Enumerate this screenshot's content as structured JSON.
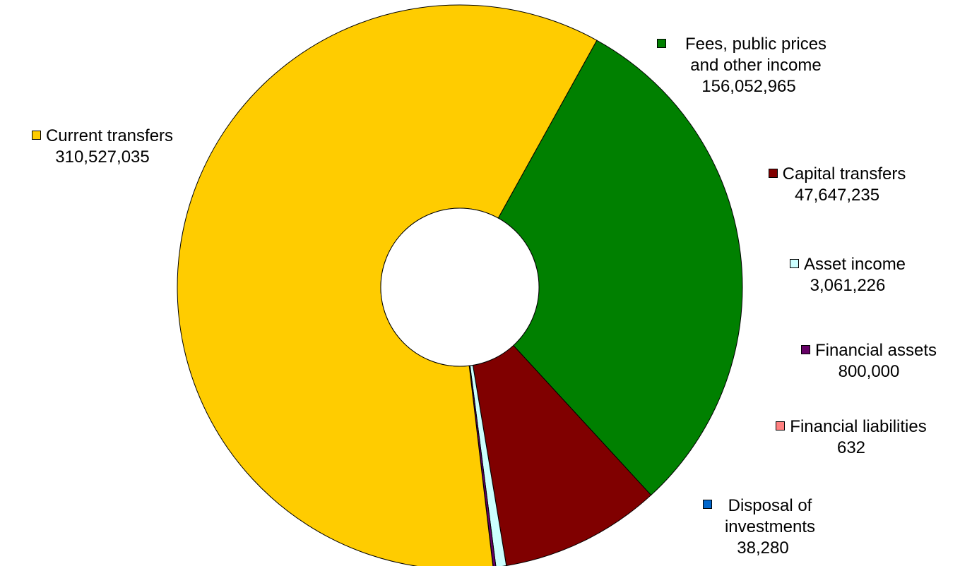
{
  "chart_data": {
    "type": "pie",
    "donut": true,
    "title": "",
    "slices": [
      {
        "label": "Fees, public prices and other income",
        "value": 156052965,
        "value_text": "156,052,965",
        "color": "#008000"
      },
      {
        "label": "Capital transfers",
        "value": 47647235,
        "value_text": "47,647,235",
        "color": "#800000"
      },
      {
        "label": "Asset income",
        "value": 3061226,
        "value_text": "3,061,226",
        "color": "#ccffff"
      },
      {
        "label": "Financial assets",
        "value": 800000,
        "value_text": "800,000",
        "color": "#660066"
      },
      {
        "label": "Financial liabilities",
        "value": 632,
        "value_text": "632",
        "color": "#ff8080"
      },
      {
        "label": "Disposal of investments",
        "value": 38280,
        "value_text": "38,280",
        "color": "#0066cc"
      },
      {
        "label": "Current transfers",
        "value": 310527035,
        "value_text": "310,527,035",
        "color": "#ffcc00"
      }
    ]
  }
}
